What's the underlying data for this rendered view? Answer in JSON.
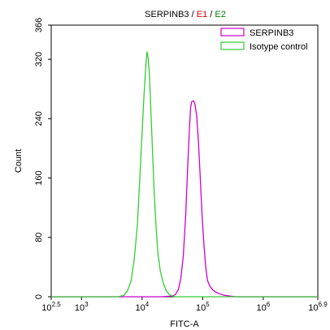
{
  "chart_data": {
    "type": "line",
    "title_parts": [
      {
        "text": "SERPINB3",
        "color": "#000000"
      },
      {
        "text": " / ",
        "color": "#000000"
      },
      {
        "text": "E1",
        "color": "#e00000"
      },
      {
        "text": " / ",
        "color": "#000000"
      },
      {
        "text": "E2",
        "color": "#008000"
      }
    ],
    "xlabel": "FITC-A",
    "ylabel": "Count",
    "x_scale": "log10",
    "xlim_exp": [
      2.5,
      6.9
    ],
    "ylim": [
      0,
      366
    ],
    "x_ticks": [
      {
        "base": "10",
        "exp": "2.5",
        "value": 2.5
      },
      {
        "base": "10",
        "exp": "3",
        "value": 3
      },
      {
        "base": "10",
        "exp": "4",
        "value": 4
      },
      {
        "base": "10",
        "exp": "5",
        "value": 5
      },
      {
        "base": "10",
        "exp": "6",
        "value": 6
      },
      {
        "base": "10",
        "exp": "6.9",
        "value": 6.9
      }
    ],
    "y_ticks": [
      0,
      80,
      160,
      240,
      320,
      366
    ],
    "legend_position": "top-right",
    "series": [
      {
        "name": "SERPINB3",
        "color": "#cc00cc",
        "points": [
          [
            2.5,
            0
          ],
          [
            4.3,
            0
          ],
          [
            4.5,
            1
          ],
          [
            4.55,
            3
          ],
          [
            4.6,
            10
          ],
          [
            4.64,
            25
          ],
          [
            4.68,
            55
          ],
          [
            4.72,
            110
          ],
          [
            4.75,
            170
          ],
          [
            4.78,
            225
          ],
          [
            4.8,
            255
          ],
          [
            4.82,
            263
          ],
          [
            4.85,
            264
          ],
          [
            4.87,
            260
          ],
          [
            4.9,
            245
          ],
          [
            4.93,
            210
          ],
          [
            4.96,
            160
          ],
          [
            4.99,
            110
          ],
          [
            5.02,
            70
          ],
          [
            5.05,
            40
          ],
          [
            5.08,
            22
          ],
          [
            5.12,
            14
          ],
          [
            5.17,
            9
          ],
          [
            5.22,
            6
          ],
          [
            5.28,
            4
          ],
          [
            5.35,
            2
          ],
          [
            5.45,
            1
          ],
          [
            5.55,
            0
          ],
          [
            6.9,
            0
          ]
        ]
      },
      {
        "name": "Isotype control",
        "color": "#33cc33",
        "points": [
          [
            2.5,
            0
          ],
          [
            3.6,
            0
          ],
          [
            3.7,
            2
          ],
          [
            3.76,
            8
          ],
          [
            3.82,
            22
          ],
          [
            3.87,
            50
          ],
          [
            3.92,
            95
          ],
          [
            3.96,
            155
          ],
          [
            4.0,
            220
          ],
          [
            4.03,
            270
          ],
          [
            4.06,
            310
          ],
          [
            4.08,
            330
          ],
          [
            4.1,
            322
          ],
          [
            4.12,
            300
          ],
          [
            4.14,
            260
          ],
          [
            4.17,
            200
          ],
          [
            4.2,
            140
          ],
          [
            4.23,
            95
          ],
          [
            4.26,
            60
          ],
          [
            4.3,
            35
          ],
          [
            4.35,
            18
          ],
          [
            4.4,
            8
          ],
          [
            4.45,
            3
          ],
          [
            4.5,
            1
          ],
          [
            4.55,
            0
          ],
          [
            6.9,
            0
          ]
        ]
      }
    ]
  }
}
